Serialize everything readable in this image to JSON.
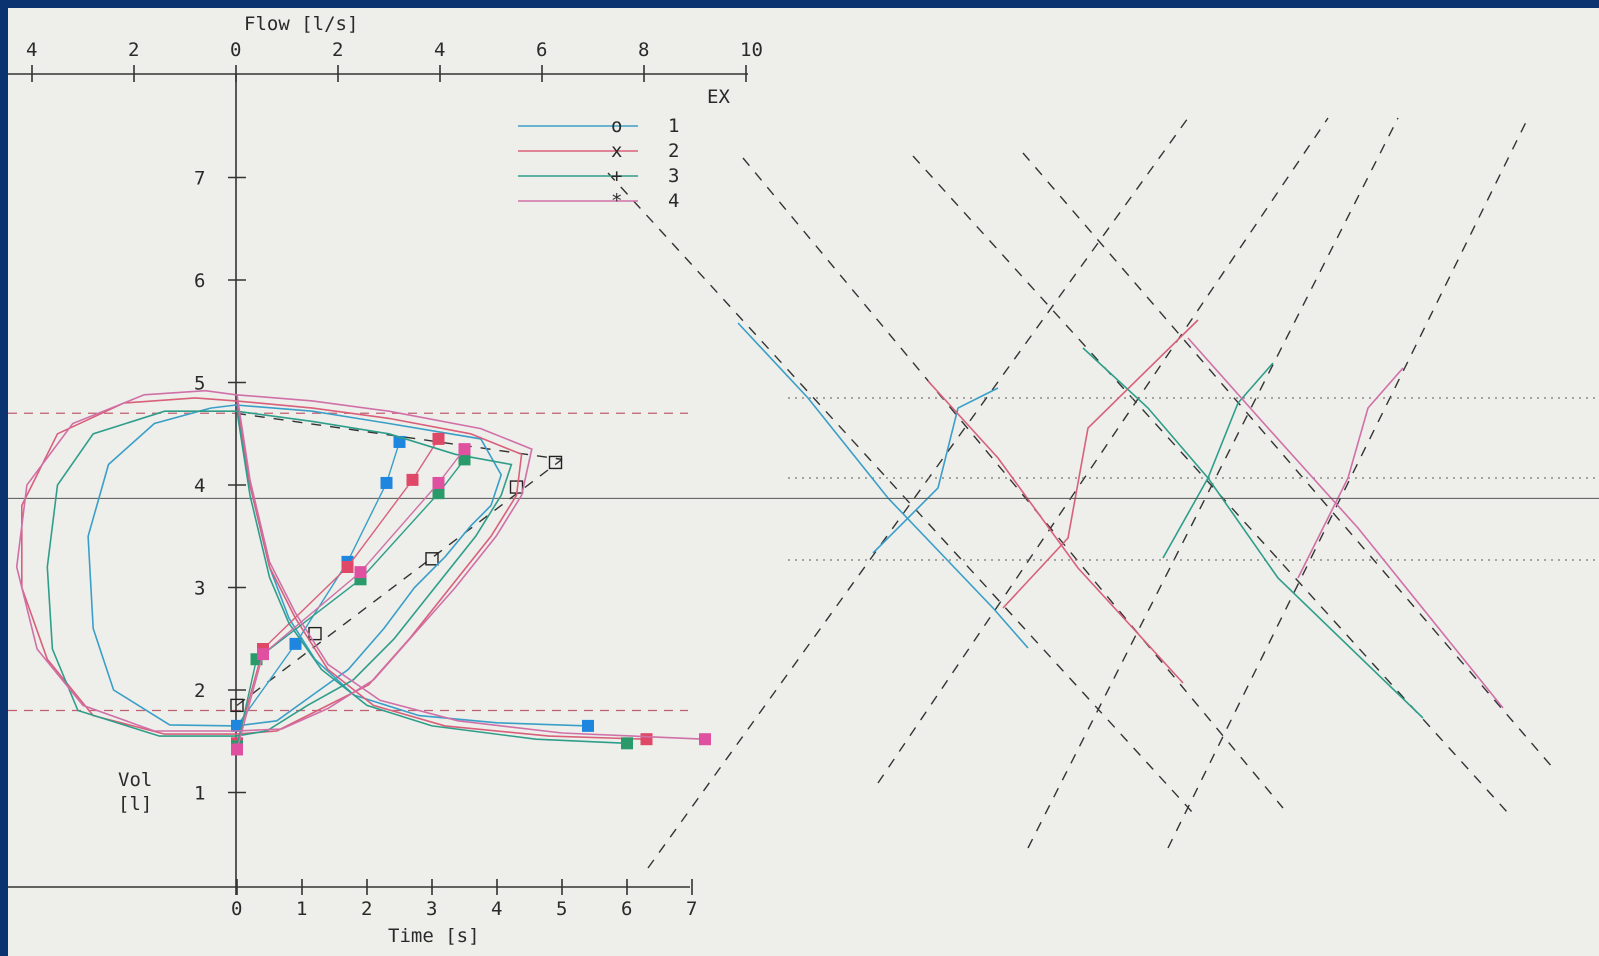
{
  "chart_data": {
    "type": "line",
    "title": "",
    "top_axis": {
      "label": "Flow [l/s]",
      "ticks": [
        "4",
        "2",
        "0",
        "2",
        "4",
        "6",
        "8",
        "10"
      ],
      "annotation": "EX"
    },
    "bottom_axis": {
      "label": "Time [s]",
      "ticks": [
        "0",
        "1",
        "2",
        "3",
        "4",
        "5",
        "6",
        "7"
      ]
    },
    "y_axis": {
      "label_line1": "Vol",
      "label_line2": "[l]",
      "ticks": [
        "1",
        "2",
        "3",
        "4",
        "5",
        "6",
        "7"
      ]
    },
    "legend": {
      "position": "top-center",
      "entries": [
        {
          "label": "1",
          "marker": "o",
          "color": "#3a9fc8"
        },
        {
          "label": "2",
          "marker": "x",
          "color": "#d8607a"
        },
        {
          "label": "3",
          "marker": "+",
          "color": "#2e9e8a"
        },
        {
          "label": "4",
          "marker": "*",
          "color": "#d070a8"
        }
      ]
    },
    "series": [
      {
        "name": "1",
        "color": "#3a9fc8",
        "marker_color": "#1f86e0",
        "flow_volume": [
          [
            0,
            4.78
          ],
          [
            1.5,
            4.72
          ],
          [
            3,
            4.6
          ],
          [
            4.8,
            4.45
          ],
          [
            5.2,
            4.1
          ],
          [
            5.0,
            3.8
          ],
          [
            4.6,
            3.6
          ],
          [
            4.1,
            3.3
          ],
          [
            3.5,
            3.0
          ],
          [
            2.9,
            2.6
          ],
          [
            2.2,
            2.2
          ],
          [
            1.5,
            1.95
          ],
          [
            0.8,
            1.7
          ],
          [
            0,
            1.65
          ],
          [
            -1.3,
            1.66
          ],
          [
            -2.4,
            2.0
          ],
          [
            -2.8,
            2.6
          ],
          [
            -2.9,
            3.5
          ],
          [
            -2.5,
            4.2
          ],
          [
            -1.6,
            4.6
          ],
          [
            -0.5,
            4.75
          ],
          [
            0,
            4.78
          ]
        ],
        "volume_time": [
          [
            0,
            4.78
          ],
          [
            0.2,
            4.0
          ],
          [
            0.5,
            3.2
          ],
          [
            0.8,
            2.7
          ],
          [
            1.2,
            2.3
          ],
          [
            1.8,
            1.95
          ],
          [
            2.8,
            1.75
          ],
          [
            4.0,
            1.68
          ],
          [
            5.4,
            1.65
          ]
        ],
        "markers": [
          [
            2.5,
            4.42
          ],
          [
            2.3,
            4.02
          ],
          [
            1.7,
            3.25
          ],
          [
            0.9,
            2.45
          ],
          [
            0,
            1.65
          ]
        ]
      },
      {
        "name": "2",
        "color": "#d8607a",
        "marker_color": "#e04868",
        "flow_volume": [
          [
            0,
            4.82
          ],
          [
            1.5,
            4.75
          ],
          [
            3,
            4.65
          ],
          [
            4.6,
            4.5
          ],
          [
            5.6,
            4.3
          ],
          [
            5.5,
            3.9
          ],
          [
            5.0,
            3.5
          ],
          [
            4.2,
            3.0
          ],
          [
            3.4,
            2.5
          ],
          [
            2.6,
            2.05
          ],
          [
            1.6,
            1.8
          ],
          [
            0.8,
            1.6
          ],
          [
            0,
            1.57
          ],
          [
            -1.4,
            1.57
          ],
          [
            -2.8,
            1.75
          ],
          [
            -3.7,
            2.3
          ],
          [
            -4.2,
            3.0
          ],
          [
            -4.2,
            3.8
          ],
          [
            -3.5,
            4.5
          ],
          [
            -2.2,
            4.8
          ],
          [
            -0.8,
            4.85
          ],
          [
            0,
            4.82
          ]
        ],
        "volume_time": [
          [
            0,
            4.82
          ],
          [
            0.2,
            4.0
          ],
          [
            0.5,
            3.2
          ],
          [
            0.9,
            2.7
          ],
          [
            1.4,
            2.2
          ],
          [
            2.1,
            1.85
          ],
          [
            3.2,
            1.65
          ],
          [
            4.8,
            1.55
          ],
          [
            6.3,
            1.52
          ]
        ],
        "markers": [
          [
            3.1,
            4.45
          ],
          [
            2.7,
            4.05
          ],
          [
            1.7,
            3.2
          ],
          [
            0.4,
            2.4
          ],
          [
            0,
            1.48
          ]
        ]
      },
      {
        "name": "3",
        "color": "#2e9e8a",
        "marker_color": "#2a9a6a",
        "flow_volume": [
          [
            0,
            4.72
          ],
          [
            1.5,
            4.62
          ],
          [
            3,
            4.5
          ],
          [
            4.3,
            4.3
          ],
          [
            5.4,
            4.2
          ],
          [
            5.2,
            3.9
          ],
          [
            4.7,
            3.5
          ],
          [
            3.9,
            3.0
          ],
          [
            3.1,
            2.5
          ],
          [
            2.3,
            2.1
          ],
          [
            1.4,
            1.85
          ],
          [
            0.6,
            1.6
          ],
          [
            0,
            1.55
          ],
          [
            -1.5,
            1.55
          ],
          [
            -3.1,
            1.8
          ],
          [
            -3.6,
            2.4
          ],
          [
            -3.7,
            3.2
          ],
          [
            -3.5,
            4.0
          ],
          [
            -2.8,
            4.5
          ],
          [
            -1.4,
            4.72
          ],
          [
            0,
            4.72
          ]
        ],
        "volume_time": [
          [
            0,
            4.72
          ],
          [
            0.2,
            3.9
          ],
          [
            0.5,
            3.1
          ],
          [
            0.8,
            2.65
          ],
          [
            1.3,
            2.2
          ],
          [
            2.0,
            1.85
          ],
          [
            3.0,
            1.65
          ],
          [
            4.6,
            1.52
          ],
          [
            6.0,
            1.48
          ]
        ],
        "markers": [
          [
            3.5,
            4.25
          ],
          [
            3.1,
            3.92
          ],
          [
            1.9,
            3.08
          ],
          [
            0.3,
            2.3
          ],
          [
            0,
            1.45
          ]
        ]
      },
      {
        "name": "4",
        "color": "#d070a8",
        "marker_color": "#e050a0",
        "flow_volume": [
          [
            0,
            4.88
          ],
          [
            1.5,
            4.82
          ],
          [
            3,
            4.72
          ],
          [
            4.8,
            4.55
          ],
          [
            5.8,
            4.35
          ],
          [
            5.6,
            3.9
          ],
          [
            5.1,
            3.5
          ],
          [
            4.3,
            3.0
          ],
          [
            3.5,
            2.55
          ],
          [
            2.7,
            2.1
          ],
          [
            1.8,
            1.82
          ],
          [
            0.9,
            1.62
          ],
          [
            0,
            1.6
          ],
          [
            -1.6,
            1.6
          ],
          [
            -3.0,
            1.85
          ],
          [
            -3.9,
            2.4
          ],
          [
            -4.3,
            3.2
          ],
          [
            -4.1,
            4.0
          ],
          [
            -3.2,
            4.6
          ],
          [
            -1.8,
            4.88
          ],
          [
            -0.6,
            4.92
          ],
          [
            0,
            4.88
          ]
        ],
        "volume_time": [
          [
            0,
            4.88
          ],
          [
            0.2,
            4.05
          ],
          [
            0.5,
            3.25
          ],
          [
            0.9,
            2.75
          ],
          [
            1.4,
            2.25
          ],
          [
            2.2,
            1.9
          ],
          [
            3.4,
            1.7
          ],
          [
            5.0,
            1.58
          ],
          [
            7.2,
            1.52
          ]
        ],
        "markers": [
          [
            3.5,
            4.35
          ],
          [
            3.1,
            4.02
          ],
          [
            1.9,
            3.15
          ],
          [
            0.4,
            2.35
          ],
          [
            0,
            1.42
          ]
        ]
      }
    ],
    "reference_markers": [
      [
        0,
        1.85
      ],
      [
        1.2,
        2.55
      ],
      [
        3.0,
        3.28
      ],
      [
        4.3,
        3.98
      ],
      [
        4.9,
        4.22
      ]
    ],
    "reference_line": [
      [
        0,
        1.85
      ],
      [
        5.0,
        4.25
      ]
    ],
    "annotations": {
      "tv_limits_volume": [
        4.7,
        1.8
      ],
      "crosshair_volume": 3.87
    }
  }
}
